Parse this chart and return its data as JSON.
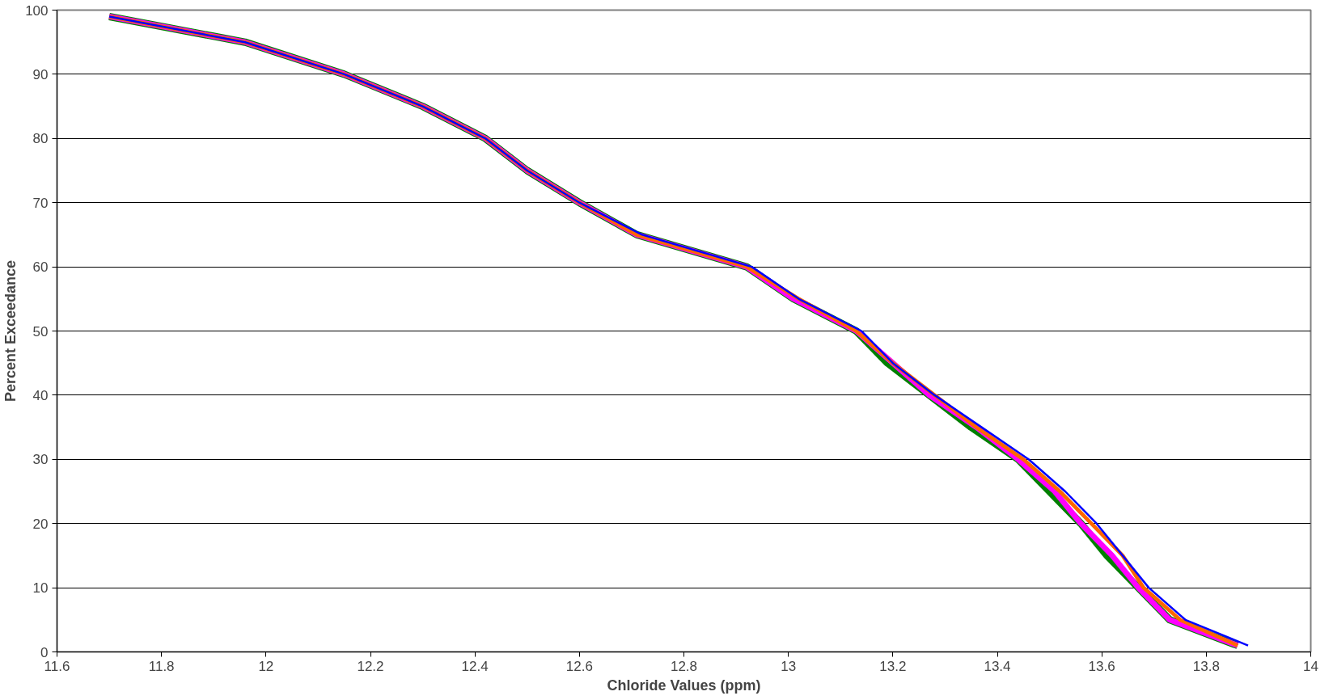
{
  "chart_data": {
    "type": "line",
    "xlabel": "Chloride Values (ppm)",
    "ylabel": "Percent Exceedance",
    "xlim": [
      11.6,
      14
    ],
    "ylim": [
      0,
      100
    ],
    "xticks": [
      11.6,
      11.8,
      {
        "value": 12,
        "label": "12"
      },
      12.2,
      12.4,
      12.6,
      12.8,
      {
        "value": 13,
        "label": "13"
      },
      13.2,
      13.4,
      13.6,
      13.8,
      {
        "value": 14,
        "label": "14"
      }
    ],
    "yticks": [
      0,
      10,
      20,
      30,
      40,
      50,
      60,
      70,
      80,
      90,
      100
    ],
    "grid": "y",
    "line_style": "solid",
    "series": [
      {
        "color": "#008000",
        "x": [
          11.7,
          11.96,
          12.15,
          12.3,
          12.42,
          12.5,
          12.6,
          12.71,
          12.92,
          13.01,
          13.13,
          13.19,
          13.27,
          13.35,
          13.44,
          13.5,
          13.56,
          13.61,
          13.67,
          13.73,
          13.86
        ],
        "values": [
          99,
          95,
          90,
          85,
          80,
          75,
          70,
          65,
          60,
          55,
          50,
          45,
          40,
          35,
          30,
          25,
          20,
          15,
          10,
          5,
          1
        ]
      },
      {
        "color": "#ff00ff",
        "x": [
          11.7,
          11.96,
          12.15,
          12.3,
          12.42,
          12.5,
          12.6,
          12.71,
          12.92,
          13.01,
          13.13,
          13.2,
          13.27,
          13.36,
          13.44,
          13.51,
          13.56,
          13.62,
          13.67,
          13.73,
          13.86
        ],
        "values": [
          99,
          95,
          90,
          85,
          80,
          75,
          70,
          65,
          60,
          55,
          50,
          45,
          40,
          35,
          30,
          25,
          20,
          15,
          10,
          5,
          1
        ]
      },
      {
        "color": "#ff6600",
        "x": [
          11.7,
          11.96,
          12.15,
          12.3,
          12.42,
          12.5,
          12.6,
          12.71,
          12.92,
          13.02,
          13.13,
          13.2,
          13.28,
          13.36,
          13.45,
          13.52,
          13.58,
          13.64,
          13.68,
          13.75,
          13.86
        ],
        "values": [
          99,
          95,
          90,
          85,
          80,
          75,
          70,
          65,
          60,
          55,
          50,
          45,
          40,
          35,
          30,
          25,
          20,
          15,
          10,
          5,
          1
        ]
      },
      {
        "color": "#0000ff",
        "x": [
          11.7,
          11.96,
          12.15,
          12.3,
          12.42,
          12.5,
          12.6,
          12.72,
          12.93,
          13.02,
          13.14,
          13.2,
          13.28,
          13.37,
          13.46,
          13.53,
          13.59,
          13.64,
          13.69,
          13.76,
          13.88
        ],
        "values": [
          99,
          95,
          90,
          85,
          80,
          75,
          70,
          65,
          60,
          55,
          50,
          45,
          40,
          35,
          30,
          25,
          20,
          15,
          10,
          5,
          1
        ]
      }
    ]
  }
}
